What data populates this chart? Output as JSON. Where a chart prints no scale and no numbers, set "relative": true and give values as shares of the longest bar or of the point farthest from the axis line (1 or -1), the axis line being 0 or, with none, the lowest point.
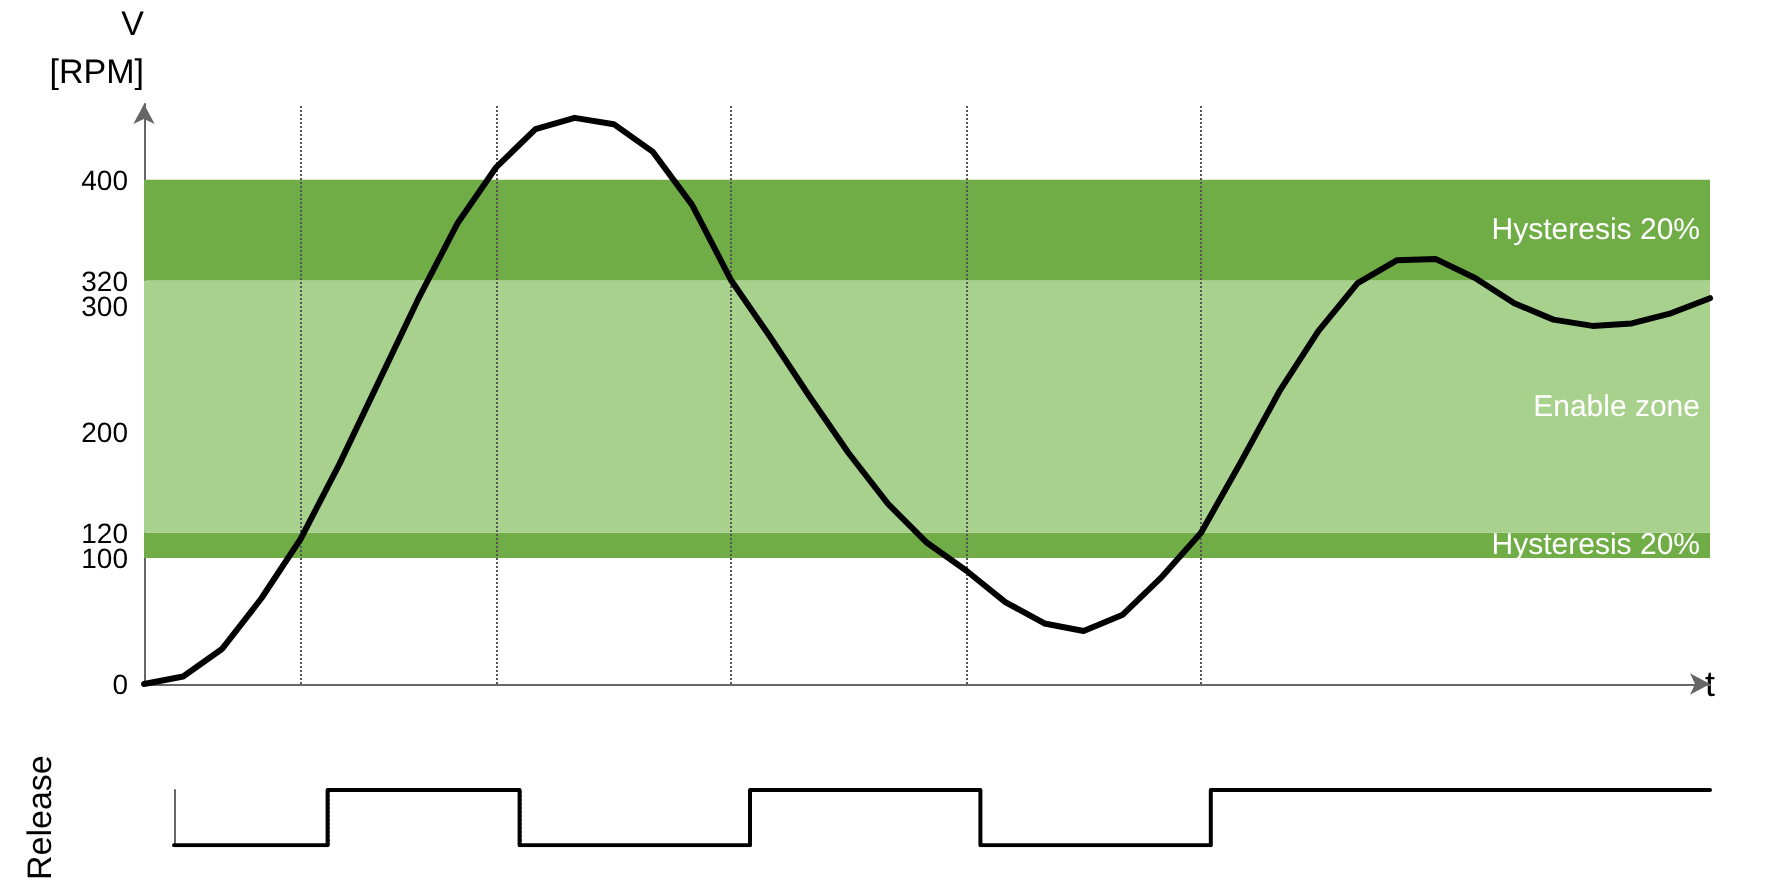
{
  "chart_data": [
    {
      "type": "line",
      "xlabel": "t",
      "ylabel": "V\n[RPM]",
      "color": "#000000",
      "categories": [
        null,
        null,
        null,
        null,
        null,
        null,
        null,
        null,
        null,
        null,
        null,
        null,
        null,
        null,
        null,
        null,
        null,
        null,
        null,
        null,
        null,
        null,
        null,
        null,
        null,
        null,
        null,
        null,
        null,
        null,
        null,
        null,
        null,
        null,
        null,
        null,
        null,
        null,
        null,
        null,
        null
      ],
      "values": [
        0,
        6,
        28,
        68,
        115,
        175,
        240,
        305,
        365,
        410,
        440,
        449,
        444,
        422,
        380,
        320,
        275,
        228,
        183,
        143,
        112,
        90,
        65,
        48,
        42,
        55,
        85,
        120,
        175,
        232,
        280,
        318,
        336,
        337,
        322,
        302,
        289,
        284,
        286,
        294,
        306
      ],
      "ylim": [
        0,
        460
      ],
      "yticks": [
        0,
        100,
        120,
        200,
        300,
        320,
        400
      ],
      "tick_labels": "y",
      "grid": "x",
      "marker": "none",
      "line_style": "solid",
      "bands": [
        {
          "axis": "y",
          "from": 100,
          "to": 120,
          "label": "Hysteresis 20%",
          "color": "#70ad47"
        },
        {
          "axis": "y",
          "from": 120,
          "to": 320,
          "label": "Enable zone",
          "color": "#a9d18e"
        },
        {
          "axis": "y",
          "from": 320,
          "to": 400,
          "label": "Hysteresis 20%",
          "color": "#70ad47"
        }
      ]
    },
    {
      "type": "step",
      "ylabel": "Release",
      "relative": true,
      "color": "#000000",
      "categories": [
        null,
        null,
        null,
        null,
        null,
        null,
        null,
        null,
        null,
        null,
        null,
        null,
        null,
        null,
        null,
        null,
        null,
        null,
        null,
        null,
        null,
        null,
        null,
        null,
        null,
        null,
        null,
        null,
        null,
        null,
        null,
        null,
        null,
        null,
        null,
        null,
        null,
        null,
        null,
        null,
        null
      ],
      "values": [
        0,
        0,
        0,
        0,
        1,
        1,
        1,
        1,
        1,
        0,
        0,
        0,
        0,
        0,
        0,
        1,
        1,
        1,
        1,
        1,
        1,
        0,
        0,
        0,
        0,
        0,
        0,
        1,
        1,
        1,
        1,
        1,
        1,
        1,
        1,
        1,
        1,
        1,
        1,
        1,
        1
      ],
      "tick_labels": false,
      "grid": "x",
      "marker": "none",
      "line_style": "solid"
    }
  ]
}
